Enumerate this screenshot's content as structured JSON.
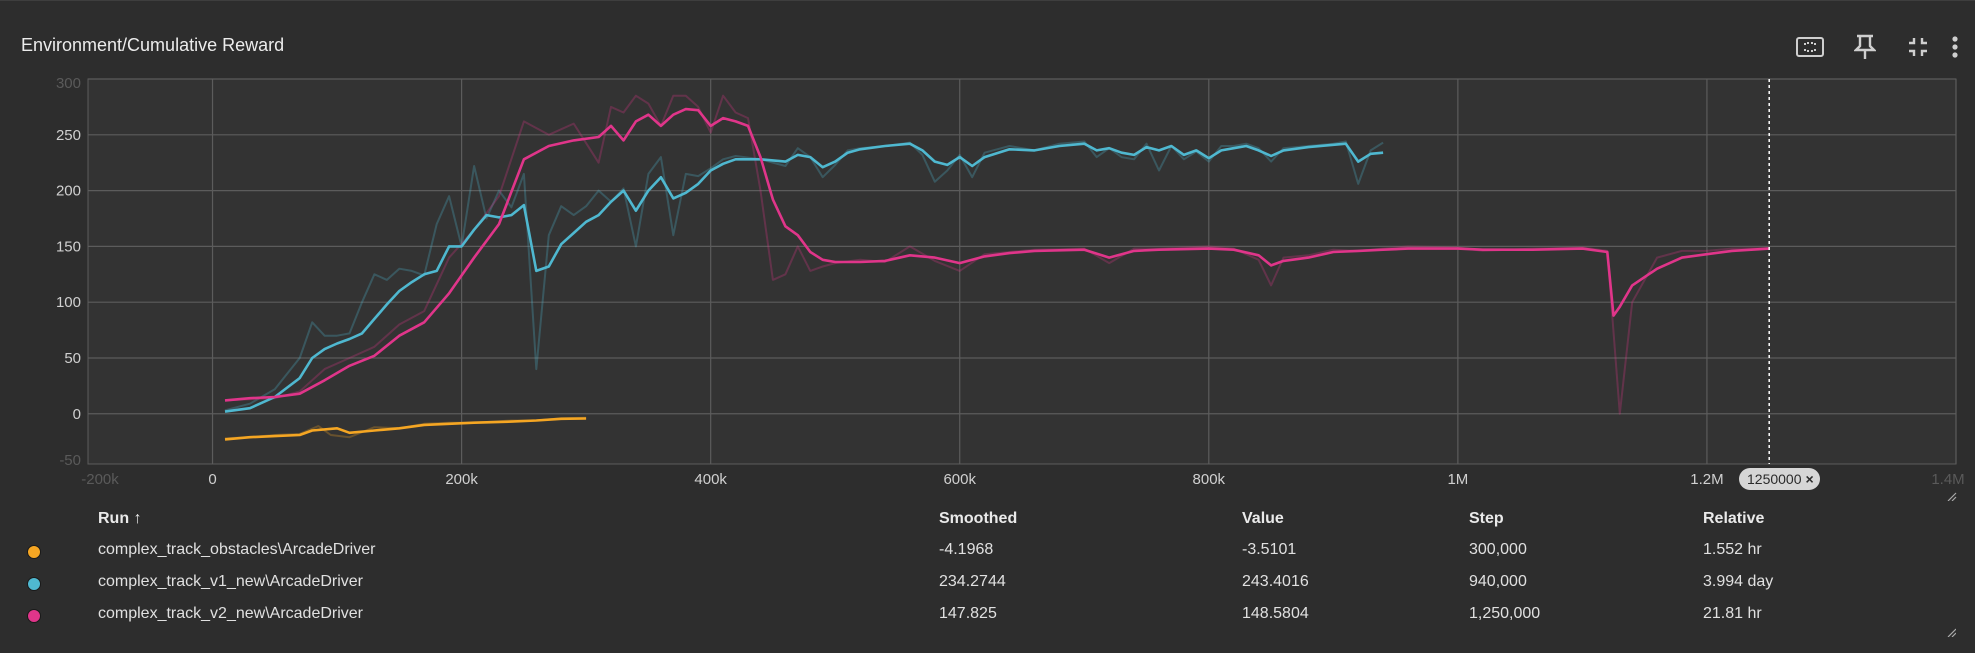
{
  "card": {
    "title": "Environment/Cumulative Reward"
  },
  "toolbar": {
    "icons": [
      "fit-domain-icon",
      "pin-icon",
      "collapse-icon",
      "more-vert-icon"
    ]
  },
  "step_pill": {
    "label": "1250000",
    "close": "×"
  },
  "table": {
    "headers": {
      "run": "Run",
      "sort_arrow": "↑",
      "smoothed": "Smoothed",
      "value": "Value",
      "step": "Step",
      "relative": "Relative"
    },
    "rows": [
      {
        "color": "#f5a623",
        "run": "complex_track_obstacles\\ArcadeDriver",
        "smoothed": "-4.1968",
        "value": "-3.5101",
        "step": "300,000",
        "relative": "1.552 hr"
      },
      {
        "color": "#4fb8d0",
        "run": "complex_track_v1_new\\ArcadeDriver",
        "smoothed": "234.2744",
        "value": "243.4016",
        "step": "940,000",
        "relative": "3.994 day"
      },
      {
        "color": "#e0358a",
        "run": "complex_track_v2_new\\ArcadeDriver",
        "smoothed": "147.825",
        "value": "148.5804",
        "step": "1,250,000",
        "relative": "21.81 hr"
      }
    ]
  },
  "chart_data": {
    "type": "line",
    "title": "Environment/Cumulative Reward",
    "xlabel": "",
    "ylabel": "",
    "xlim": [
      -100000,
      1400000
    ],
    "ylim": [
      -45,
      300
    ],
    "x_ticks": [
      "-200k",
      "0",
      "200k",
      "400k",
      "600k",
      "800k",
      "1M",
      "1.2M",
      "1.4M"
    ],
    "x_tick_values": [
      -200000,
      0,
      200000,
      400000,
      600000,
      800000,
      1000000,
      1200000,
      1400000
    ],
    "x_ticks_faint": [
      "-200k",
      "1.4M"
    ],
    "y_ticks": [
      "-50",
      "0",
      "50",
      "100",
      "150",
      "200",
      "250",
      "300"
    ],
    "y_tick_values": [
      -50,
      0,
      50,
      100,
      150,
      200,
      250,
      300
    ],
    "y_ticks_faint": [
      "-50",
      "300"
    ],
    "grid": true,
    "hover_step": 1250000,
    "series": [
      {
        "name": "complex_track_obstacles\\ArcadeDriver",
        "color": "#f5a623",
        "smoothed": {
          "x": [
            10000,
            30000,
            50000,
            70000,
            80000,
            100000,
            110000,
            130000,
            150000,
            170000,
            190000,
            210000,
            240000,
            260000,
            280000,
            300000
          ],
          "y": [
            -23,
            -21,
            -20,
            -19,
            -15,
            -13,
            -17,
            -15,
            -13,
            -10,
            -9,
            -8,
            -7,
            -6,
            -4.5,
            -4.2
          ]
        },
        "raw": {
          "x": [
            10000,
            30000,
            50000,
            70000,
            85000,
            95000,
            110000,
            130000,
            150000,
            170000,
            190000,
            210000,
            240000,
            260000,
            280000,
            300000
          ],
          "y": [
            -22,
            -21,
            -19,
            -18,
            -11,
            -19,
            -21,
            -12,
            -13,
            -9,
            -8,
            -8,
            -6,
            -6,
            -4,
            -3.5
          ]
        }
      },
      {
        "name": "complex_track_v1_new\\ArcadeDriver",
        "color": "#4fb8d0",
        "smoothed": {
          "x": [
            10000,
            30000,
            50000,
            70000,
            80000,
            90000,
            100000,
            110000,
            120000,
            130000,
            140000,
            150000,
            160000,
            170000,
            180000,
            190000,
            200000,
            210000,
            220000,
            230000,
            240000,
            250000,
            260000,
            270000,
            280000,
            290000,
            300000,
            310000,
            320000,
            330000,
            340000,
            350000,
            360000,
            370000,
            380000,
            390000,
            400000,
            410000,
            420000,
            440000,
            460000,
            470000,
            480000,
            490000,
            500000,
            510000,
            520000,
            540000,
            560000,
            570000,
            580000,
            590000,
            600000,
            610000,
            620000,
            640000,
            660000,
            680000,
            700000,
            710000,
            720000,
            730000,
            740000,
            750000,
            760000,
            770000,
            780000,
            790000,
            800000,
            810000,
            820000,
            830000,
            840000,
            850000,
            860000,
            880000,
            900000,
            910000,
            920000,
            930000,
            940000
          ],
          "y": [
            2,
            5,
            15,
            32,
            50,
            58,
            63,
            67,
            72,
            85,
            98,
            110,
            118,
            125,
            128,
            150,
            150,
            165,
            178,
            176,
            178,
            187,
            128,
            132,
            152,
            162,
            172,
            178,
            190,
            200,
            182,
            200,
            212,
            193,
            198,
            206,
            218,
            224,
            228,
            228,
            226,
            232,
            230,
            221,
            226,
            234,
            237,
            240,
            242,
            236,
            226,
            223,
            230,
            222,
            230,
            237,
            236,
            240,
            242,
            236,
            238,
            234,
            232,
            239,
            236,
            240,
            232,
            236,
            229,
            236,
            238,
            240,
            236,
            231,
            236,
            239,
            241,
            242,
            226,
            233,
            234
          ]
        },
        "raw": {
          "x": [
            10000,
            30000,
            50000,
            70000,
            80000,
            90000,
            100000,
            110000,
            120000,
            130000,
            140000,
            150000,
            160000,
            170000,
            180000,
            190000,
            200000,
            210000,
            220000,
            230000,
            240000,
            250000,
            260000,
            270000,
            280000,
            290000,
            300000,
            310000,
            320000,
            330000,
            340000,
            350000,
            360000,
            370000,
            380000,
            390000,
            400000,
            410000,
            420000,
            440000,
            460000,
            470000,
            480000,
            490000,
            500000,
            510000,
            520000,
            540000,
            560000,
            570000,
            580000,
            590000,
            600000,
            610000,
            620000,
            640000,
            660000,
            680000,
            700000,
            710000,
            720000,
            730000,
            740000,
            750000,
            760000,
            770000,
            780000,
            790000,
            800000,
            810000,
            820000,
            830000,
            840000,
            850000,
            860000,
            880000,
            900000,
            910000,
            920000,
            930000,
            940000
          ],
          "y": [
            3,
            9,
            22,
            50,
            82,
            70,
            70,
            72,
            100,
            125,
            120,
            130,
            128,
            124,
            170,
            195,
            150,
            222,
            175,
            200,
            185,
            215,
            40,
            160,
            186,
            178,
            186,
            200,
            190,
            202,
            150,
            215,
            230,
            160,
            215,
            213,
            220,
            228,
            231,
            228,
            222,
            238,
            230,
            212,
            223,
            236,
            238,
            240,
            243,
            232,
            208,
            218,
            232,
            212,
            234,
            240,
            236,
            242,
            244,
            230,
            238,
            230,
            228,
            242,
            218,
            240,
            228,
            235,
            226,
            240,
            240,
            242,
            238,
            226,
            238,
            240,
            242,
            244,
            206,
            236,
            243
          ]
        }
      },
      {
        "name": "complex_track_v2_new\\ArcadeDriver",
        "color": "#e0358a",
        "smoothed": {
          "x": [
            10000,
            30000,
            50000,
            70000,
            90000,
            110000,
            130000,
            150000,
            170000,
            190000,
            210000,
            230000,
            250000,
            270000,
            290000,
            310000,
            320000,
            330000,
            340000,
            350000,
            360000,
            370000,
            380000,
            390000,
            400000,
            410000,
            420000,
            430000,
            440000,
            450000,
            460000,
            470000,
            480000,
            490000,
            500000,
            520000,
            540000,
            560000,
            580000,
            600000,
            620000,
            640000,
            660000,
            700000,
            720000,
            740000,
            760000,
            800000,
            820000,
            840000,
            850000,
            860000,
            880000,
            900000,
            920000,
            940000,
            960000,
            1000000,
            1020000,
            1060000,
            1100000,
            1120000,
            1125000,
            1130000,
            1140000,
            1160000,
            1180000,
            1200000,
            1220000,
            1250000
          ],
          "y": [
            12,
            14,
            15,
            18,
            30,
            43,
            52,
            70,
            82,
            108,
            140,
            170,
            228,
            240,
            245,
            248,
            258,
            245,
            262,
            268,
            258,
            268,
            273,
            272,
            258,
            265,
            262,
            258,
            230,
            192,
            168,
            160,
            145,
            138,
            136,
            136,
            137,
            142,
            140,
            135,
            141,
            144,
            146,
            147,
            140,
            146,
            147,
            148,
            147,
            142,
            133,
            137,
            140,
            145,
            146,
            147,
            148,
            148,
            147,
            147,
            148,
            145,
            88,
            96,
            115,
            130,
            140,
            143,
            146,
            148
          ]
        },
        "raw": {
          "x": [
            10000,
            30000,
            50000,
            70000,
            90000,
            110000,
            130000,
            150000,
            170000,
            190000,
            210000,
            230000,
            250000,
            270000,
            290000,
            310000,
            320000,
            330000,
            340000,
            350000,
            360000,
            370000,
            380000,
            390000,
            400000,
            410000,
            420000,
            430000,
            440000,
            450000,
            460000,
            470000,
            480000,
            490000,
            500000,
            520000,
            540000,
            560000,
            580000,
            600000,
            620000,
            640000,
            660000,
            700000,
            720000,
            740000,
            760000,
            800000,
            820000,
            840000,
            850000,
            860000,
            880000,
            900000,
            920000,
            940000,
            960000,
            1000000,
            1020000,
            1060000,
            1100000,
            1120000,
            1130000,
            1140000,
            1160000,
            1180000,
            1200000,
            1220000,
            1250000
          ],
          "y": [
            12,
            13,
            14,
            20,
            40,
            50,
            60,
            80,
            92,
            140,
            165,
            195,
            262,
            250,
            260,
            225,
            275,
            270,
            285,
            278,
            258,
            285,
            285,
            275,
            252,
            285,
            270,
            265,
            200,
            120,
            125,
            150,
            128,
            132,
            135,
            138,
            136,
            150,
            137,
            128,
            143,
            145,
            147,
            148,
            135,
            148,
            148,
            150,
            148,
            138,
            115,
            140,
            142,
            147,
            146,
            148,
            150,
            149,
            146,
            148,
            149,
            146,
            0,
            100,
            140,
            146,
            146,
            148,
            148.5
          ]
        }
      }
    ]
  }
}
